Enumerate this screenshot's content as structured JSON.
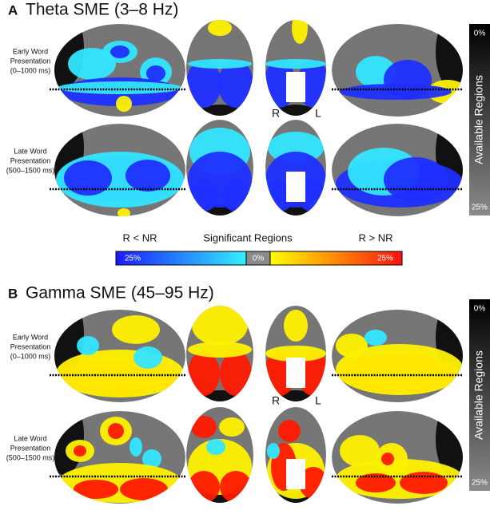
{
  "panels": [
    {
      "letter": "A",
      "title": "Theta SME (3–8 Hz)",
      "rows": [
        {
          "label": [
            "Early Word",
            "Presentation",
            "(0–1000 ms)"
          ]
        },
        {
          "label": [
            "Late Word",
            "Presentation",
            "(500–1500 ms)"
          ]
        }
      ],
      "orientation": {
        "right": "R",
        "left": "L"
      },
      "available_bar": {
        "top": "0%",
        "label": "Available Regions",
        "bottom": "25%"
      }
    },
    {
      "letter": "B",
      "title": "Gamma SME (45–95 Hz)",
      "rows": [
        {
          "label": [
            "Early Word",
            "Presentation",
            "(0–1000 ms)"
          ]
        },
        {
          "label": [
            "Late Word",
            "Presentation",
            "(500–1500 ms)"
          ]
        }
      ],
      "orientation": {
        "right": "R",
        "left": "L"
      },
      "available_bar": {
        "top": "0%",
        "label": "Available Regions",
        "bottom": "25%"
      }
    }
  ],
  "legend": {
    "left": "R < NR",
    "center": "Significant Regions",
    "right": "R > NR",
    "bar_labels": [
      "25%",
      "0%",
      "25%"
    ]
  }
}
